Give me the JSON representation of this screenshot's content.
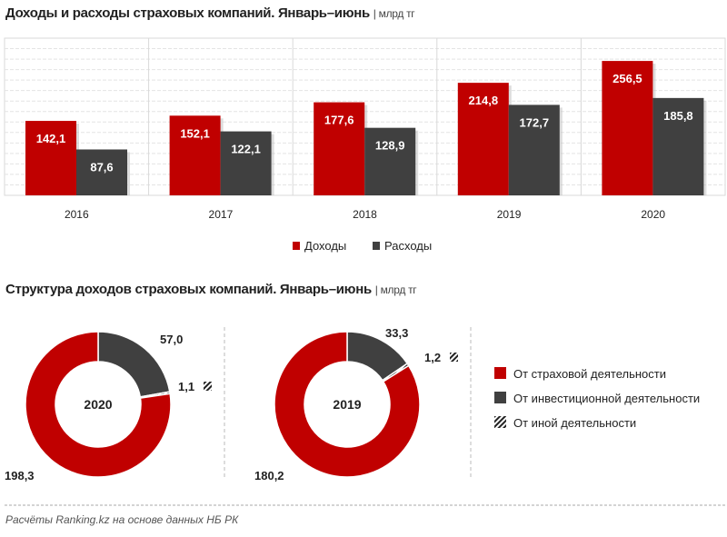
{
  "chart_data": [
    {
      "type": "bar",
      "title": "Доходы и расходы страховых компаний. Январь–июнь",
      "unit": "| млрд тг",
      "categories": [
        "2016",
        "2017",
        "2018",
        "2019",
        "2020"
      ],
      "series": [
        {
          "name": "Доходы",
          "color": "#c00000",
          "values": [
            142.1,
            152.1,
            177.6,
            214.8,
            256.5
          ],
          "labels": [
            "142,1",
            "152,1",
            "177,6",
            "214,8",
            "256,5"
          ]
        },
        {
          "name": "Расходы",
          "color": "#404040",
          "values": [
            87.6,
            122.1,
            128.9,
            172.7,
            185.8
          ],
          "labels": [
            "87,6",
            "122,1",
            "128,9",
            "172,7",
            "185,8"
          ]
        }
      ],
      "ylim": [
        0,
        300
      ],
      "legend": "bottom"
    },
    {
      "type": "pie",
      "title": "Структура доходов страховых компаний. Январь–июнь",
      "unit": "| млрд тг",
      "legend_entries": [
        "От страховой деятельности",
        "От инвестиционной деятельности",
        "От иной деятельности"
      ],
      "donuts": [
        {
          "label": "2020",
          "values": [
            198.3,
            57.0,
            1.1
          ],
          "labels": [
            "198,3",
            "57,0",
            "1,1"
          ]
        },
        {
          "label": "2019",
          "values": [
            180.2,
            33.3,
            1.2
          ],
          "labels": [
            "180,2",
            "33,3",
            "1,2"
          ]
        }
      ]
    }
  ],
  "source": "Расчёты Ranking.kz на основе данных НБ РК"
}
